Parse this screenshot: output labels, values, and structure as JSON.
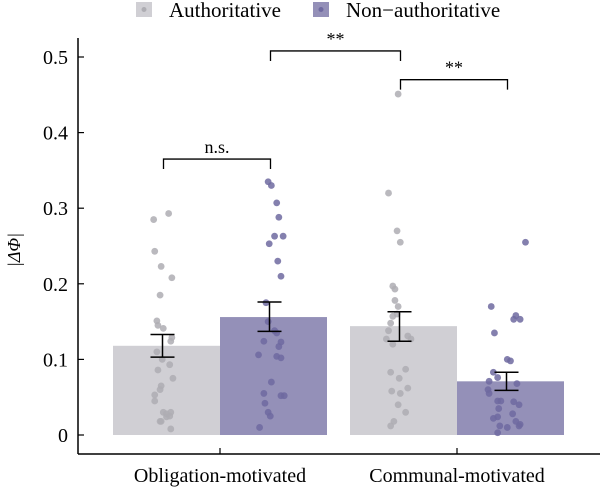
{
  "chart_data": {
    "type": "bar",
    "title": "",
    "xlabel": "",
    "ylabel": "|ΔΦ|",
    "ylim": [
      0,
      0.52
    ],
    "yticks": [
      0,
      0.1,
      0.2,
      0.3,
      0.4,
      0.5
    ],
    "ytick_labels": [
      "0",
      "0.1",
      "0.2",
      "0.3",
      "0.4",
      "0.5"
    ],
    "grid": false,
    "legend_position": "top",
    "categories": [
      "Obligation-motivated",
      "Communal-motivated"
    ],
    "series": [
      {
        "name": "Authoritative",
        "color": "#d0cfd4",
        "dot_color": "#aeadb3",
        "values": [
          0.118,
          0.144
        ],
        "se_low": [
          0.103,
          0.124
        ],
        "se_high": [
          0.133,
          0.163
        ],
        "points": [
          [
            {
              "y": 0.293,
              "jx": 0.02
            },
            {
              "y": 0.285,
              "jx": -0.12
            },
            {
              "y": 0.243,
              "jx": -0.11
            },
            {
              "y": 0.223,
              "jx": -0.05
            },
            {
              "y": 0.208,
              "jx": 0.05
            },
            {
              "y": 0.185,
              "jx": -0.06
            },
            {
              "y": 0.151,
              "jx": -0.09
            },
            {
              "y": 0.145,
              "jx": -0.08
            },
            {
              "y": 0.141,
              "jx": -0.03
            },
            {
              "y": 0.129,
              "jx": 0.05
            },
            {
              "y": 0.124,
              "jx": 0.04
            },
            {
              "y": 0.11,
              "jx": -0.09
            },
            {
              "y": 0.1,
              "jx": -0.04
            },
            {
              "y": 0.093,
              "jx": 0.03
            },
            {
              "y": 0.086,
              "jx": -0.08
            },
            {
              "y": 0.075,
              "jx": 0.06
            },
            {
              "y": 0.065,
              "jx": -0.05
            },
            {
              "y": 0.06,
              "jx": -0.06
            },
            {
              "y": 0.053,
              "jx": -0.11
            },
            {
              "y": 0.045,
              "jx": -0.11
            },
            {
              "y": 0.03,
              "jx": -0.03
            },
            {
              "y": 0.028,
              "jx": 0.0
            },
            {
              "y": 0.03,
              "jx": 0.04
            },
            {
              "y": 0.025,
              "jx": 0.03
            },
            {
              "y": 0.024,
              "jx": 0.0
            },
            {
              "y": 0.018,
              "jx": -0.06
            },
            {
              "y": 0.008,
              "jx": 0.04
            },
            {
              "y": 0.018,
              "jx": -0.05
            }
          ],
          [
            {
              "y": 0.451,
              "jx": -0.05
            },
            {
              "y": 0.32,
              "jx": -0.14
            },
            {
              "y": 0.27,
              "jx": -0.06
            },
            {
              "y": 0.255,
              "jx": -0.03
            },
            {
              "y": 0.197,
              "jx": -0.1
            },
            {
              "y": 0.193,
              "jx": -0.08
            },
            {
              "y": 0.178,
              "jx": -0.08
            },
            {
              "y": 0.17,
              "jx": -0.05
            },
            {
              "y": 0.16,
              "jx": -0.06
            },
            {
              "y": 0.157,
              "jx": -0.1
            },
            {
              "y": 0.148,
              "jx": -0.12
            },
            {
              "y": 0.138,
              "jx": -0.14
            },
            {
              "y": 0.131,
              "jx": 0.04
            },
            {
              "y": 0.127,
              "jx": 0.07
            },
            {
              "y": 0.127,
              "jx": -0.16
            },
            {
              "y": 0.12,
              "jx": -0.1
            },
            {
              "y": 0.087,
              "jx": 0.02
            },
            {
              "y": 0.083,
              "jx": -0.12
            },
            {
              "y": 0.075,
              "jx": -0.04
            },
            {
              "y": 0.062,
              "jx": 0.04
            },
            {
              "y": 0.058,
              "jx": -0.11
            },
            {
              "y": 0.055,
              "jx": -0.03
            },
            {
              "y": 0.04,
              "jx": -0.05
            },
            {
              "y": 0.03,
              "jx": 0.02
            },
            {
              "y": 0.018,
              "jx": -0.09
            },
            {
              "y": 0.012,
              "jx": -0.12
            }
          ]
        ]
      },
      {
        "name": "Non−authoritative",
        "color": "#9490b8",
        "dot_color": "#6f6aa0",
        "values": [
          0.156,
          0.071
        ],
        "se_low": [
          0.137,
          0.059
        ],
        "se_high": [
          0.176,
          0.083
        ],
        "points": [
          [
            {
              "y": 0.335,
              "jx": -0.05
            },
            {
              "y": 0.33,
              "jx": -0.02
            },
            {
              "y": 0.307,
              "jx": 0.03
            },
            {
              "y": 0.288,
              "jx": 0.05
            },
            {
              "y": 0.263,
              "jx": 0.01
            },
            {
              "y": 0.263,
              "jx": 0.09
            },
            {
              "y": 0.253,
              "jx": -0.04
            },
            {
              "y": 0.23,
              "jx": 0.04
            },
            {
              "y": 0.21,
              "jx": 0.07
            },
            {
              "y": 0.175,
              "jx": -0.07
            },
            {
              "y": 0.15,
              "jx": -0.05
            },
            {
              "y": 0.138,
              "jx": 0.01
            },
            {
              "y": 0.135,
              "jx": 0.03
            },
            {
              "y": 0.124,
              "jx": -0.09
            },
            {
              "y": 0.123,
              "jx": 0.07
            },
            {
              "y": 0.117,
              "jx": 0.05
            },
            {
              "y": 0.106,
              "jx": -0.14
            },
            {
              "y": 0.104,
              "jx": 0.03
            },
            {
              "y": 0.102,
              "jx": 0.07
            },
            {
              "y": 0.07,
              "jx": -0.02
            },
            {
              "y": 0.055,
              "jx": -0.09
            },
            {
              "y": 0.052,
              "jx": 0.07
            },
            {
              "y": 0.052,
              "jx": 0.1
            },
            {
              "y": 0.042,
              "jx": -0.08
            },
            {
              "y": 0.03,
              "jx": -0.05
            },
            {
              "y": 0.01,
              "jx": -0.13
            },
            {
              "y": 0.025,
              "jx": -0.03
            }
          ],
          [
            {
              "y": 0.255,
              "jx": 0.14
            },
            {
              "y": 0.17,
              "jx": -0.18
            },
            {
              "y": 0.158,
              "jx": 0.05
            },
            {
              "y": 0.153,
              "jx": 0.03
            },
            {
              "y": 0.153,
              "jx": 0.09
            },
            {
              "y": 0.135,
              "jx": -0.15
            },
            {
              "y": 0.1,
              "jx": -0.03
            },
            {
              "y": 0.098,
              "jx": 0.0
            },
            {
              "y": 0.083,
              "jx": -0.16
            },
            {
              "y": 0.076,
              "jx": -0.12
            },
            {
              "y": 0.071,
              "jx": -0.2
            },
            {
              "y": 0.068,
              "jx": 0.06
            },
            {
              "y": 0.06,
              "jx": -0.21
            },
            {
              "y": 0.055,
              "jx": -0.2
            },
            {
              "y": 0.045,
              "jx": -0.12
            },
            {
              "y": 0.045,
              "jx": -0.09
            },
            {
              "y": 0.044,
              "jx": 0.03
            },
            {
              "y": 0.04,
              "jx": 0.08
            },
            {
              "y": 0.035,
              "jx": -0.11
            },
            {
              "y": 0.028,
              "jx": 0.02
            },
            {
              "y": 0.024,
              "jx": -0.12
            },
            {
              "y": 0.022,
              "jx": -0.16
            },
            {
              "y": 0.018,
              "jx": 0.05
            },
            {
              "y": 0.014,
              "jx": 0.09
            },
            {
              "y": 0.012,
              "jx": -0.1
            },
            {
              "y": 0.01,
              "jx": -0.03
            },
            {
              "y": 0.012,
              "jx": 0.08
            },
            {
              "y": 0.003,
              "jx": -0.12
            }
          ]
        ]
      }
    ],
    "significance": [
      {
        "label": "n.s.",
        "from": [
          0,
          0
        ],
        "to": [
          0,
          1
        ],
        "level_y": 0.365
      },
      {
        "label": "**",
        "from": [
          0,
          1
        ],
        "to": [
          1,
          0
        ],
        "level_y": 0.508
      },
      {
        "label": "**",
        "from": [
          1,
          0
        ],
        "to": [
          1,
          1
        ],
        "level_y": 0.47
      }
    ]
  }
}
